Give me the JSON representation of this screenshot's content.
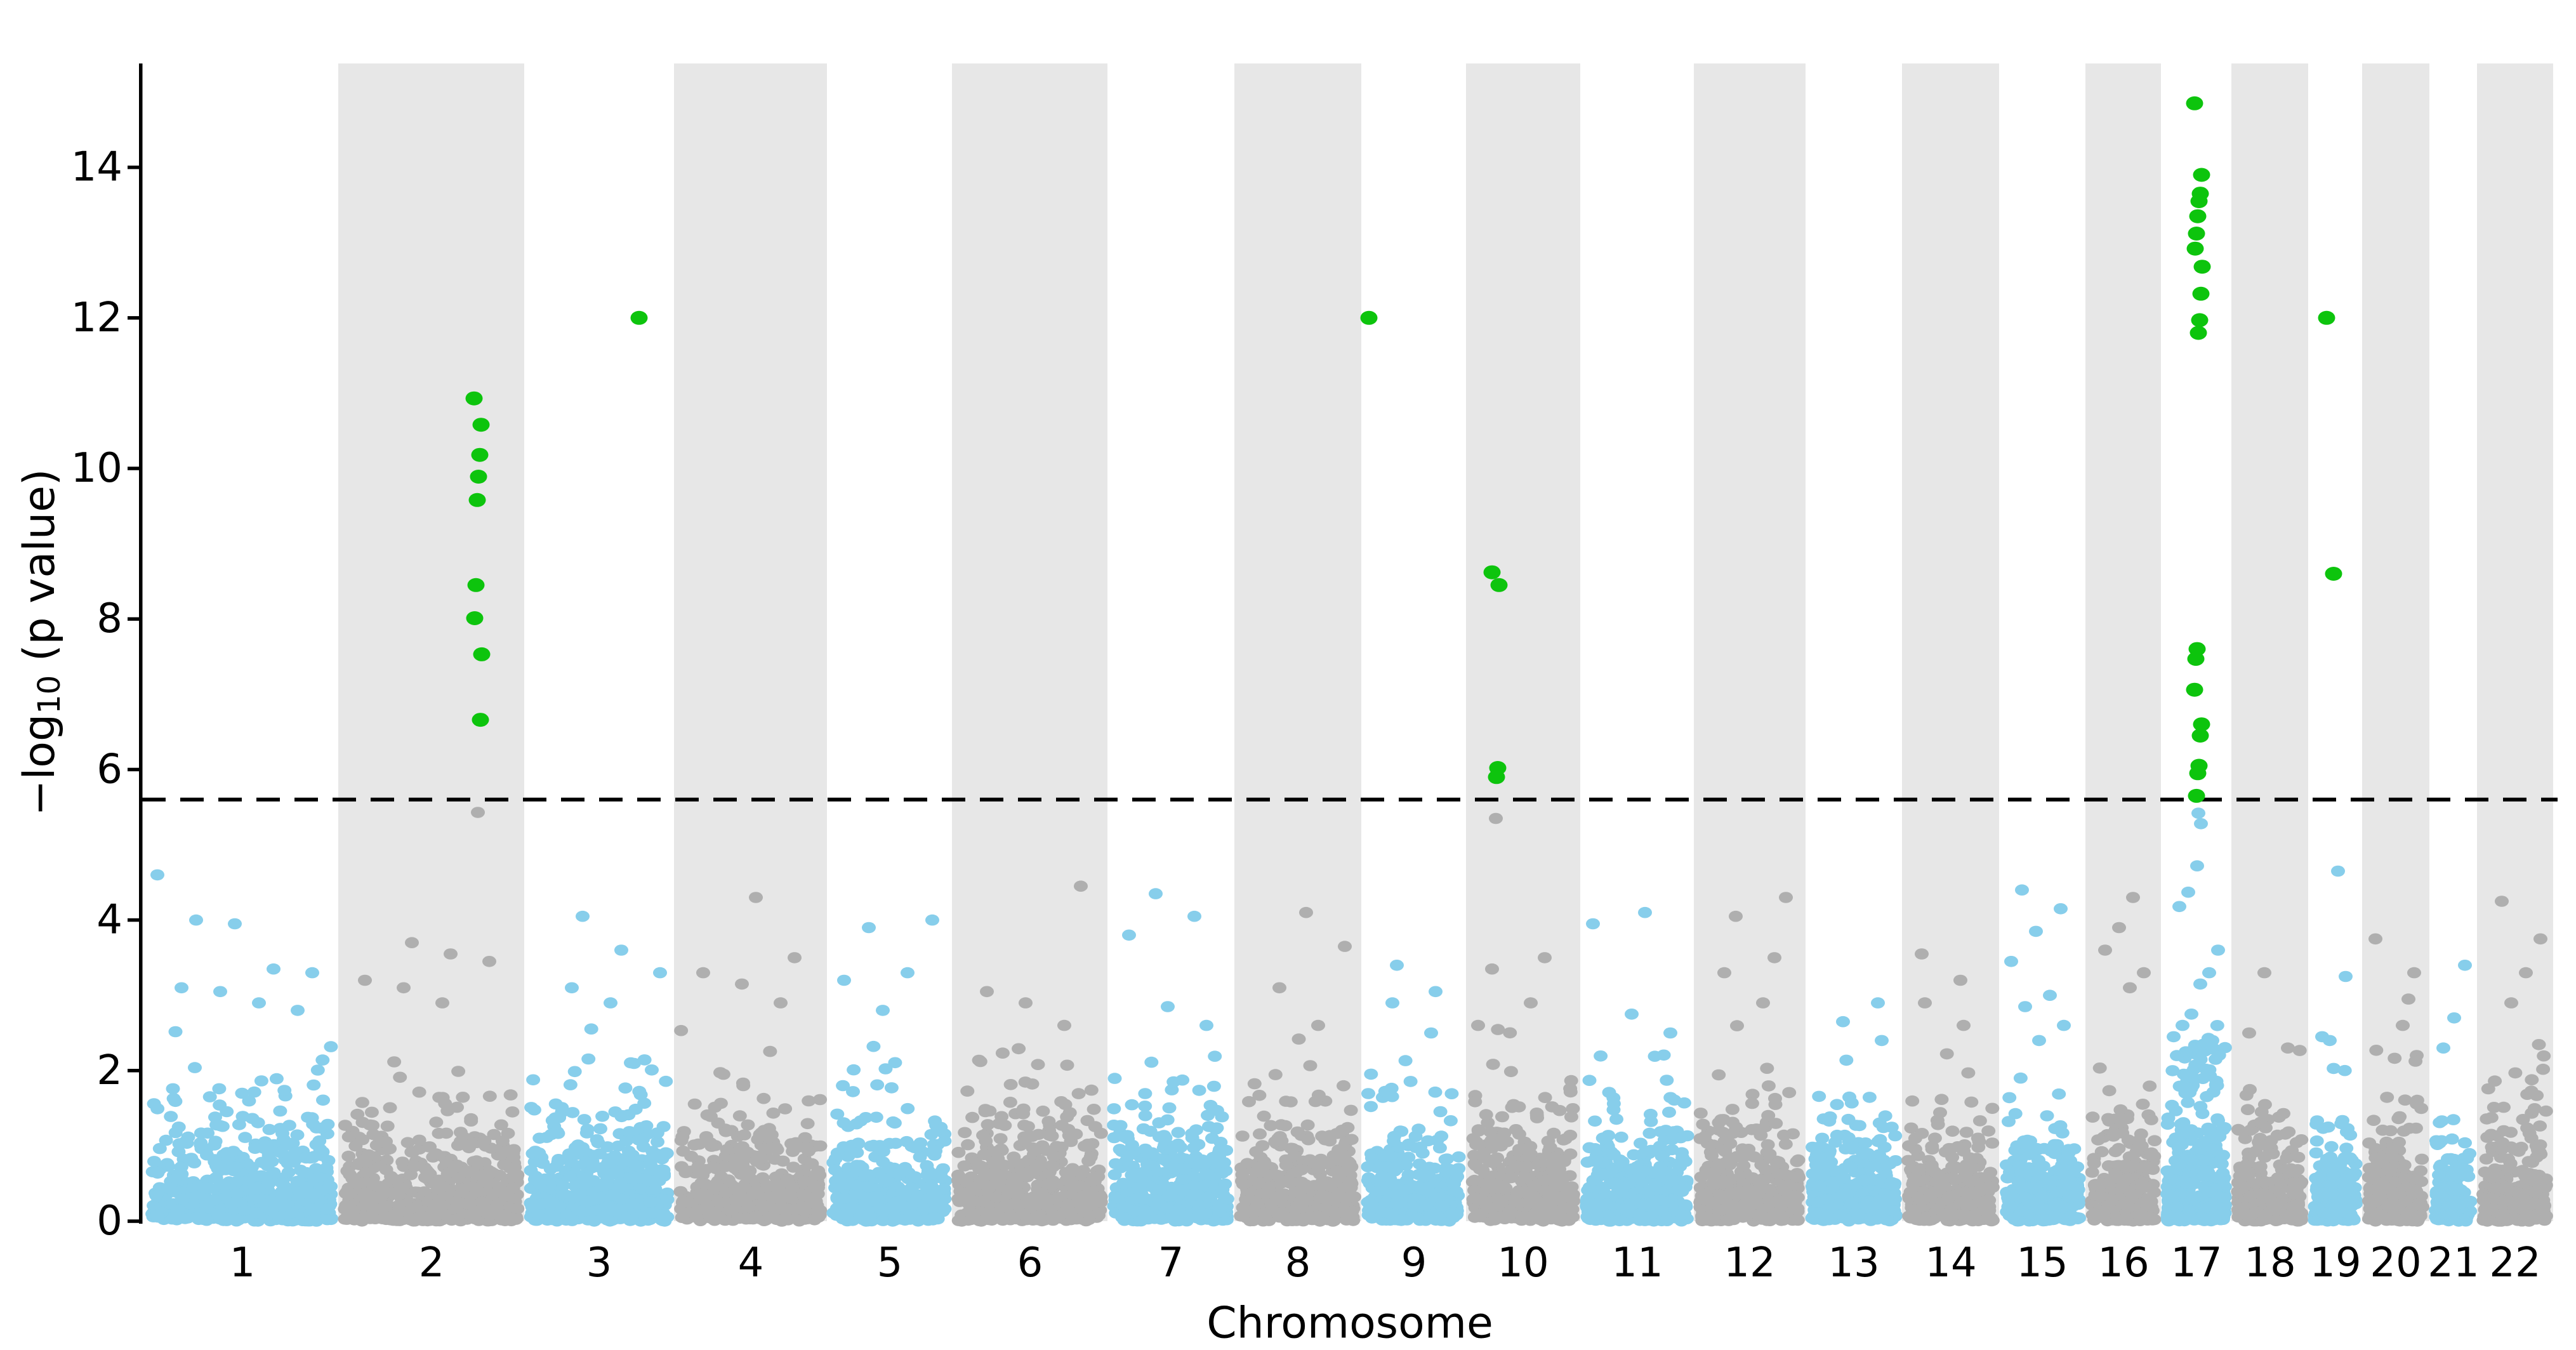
{
  "chart_data": {
    "type": "scatter",
    "subtype": "manhattan-gwas",
    "title": "",
    "xlabel": "Chromosome",
    "ylabel": {
      "pre": "−log",
      "sub": "10",
      "post": " (p value)"
    },
    "ylim": [
      0,
      15.4
    ],
    "yticks": [
      0,
      2,
      4,
      6,
      8,
      10,
      12,
      14
    ],
    "xtick_labels": [
      "1",
      "2",
      "3",
      "4",
      "5",
      "6",
      "7",
      "8",
      "9",
      "10",
      "11",
      "12",
      "13",
      "14",
      "15",
      "16",
      "17",
      "18",
      "19",
      "20",
      "21",
      "22"
    ],
    "grid": false,
    "legend": "none",
    "threshold_line": {
      "value": 5.6,
      "style": "dashed",
      "color": "#000000"
    },
    "colors": {
      "odd_chromosome_points": "#87CEEB",
      "even_chromosome_points": "#AFAFAF",
      "even_chromosome_band": "#E7E7E7",
      "significant_points": "#0DC40D",
      "axis": "#000000"
    },
    "chromosomes": [
      {
        "label": "1",
        "x0": 230,
        "x1": 533,
        "shaded": false,
        "n": 636,
        "notable": [
          4.6,
          4.0,
          3.95,
          3.35,
          3.3,
          3.1,
          3.05,
          2.9,
          2.8
        ]
      },
      {
        "label": "2",
        "x0": 533,
        "x1": 826,
        "shaded": true,
        "n": 615,
        "notable": [
          {
            "v": 5.43,
            "x": 753
          },
          3.7,
          3.55,
          3.45,
          3.2,
          3.1,
          2.9
        ]
      },
      {
        "label": "3",
        "x0": 826,
        "x1": 1062,
        "shaded": false,
        "n": 496,
        "notable": [
          4.05,
          3.6,
          3.3,
          3.1,
          2.9
        ]
      },
      {
        "label": "4",
        "x0": 1062,
        "x1": 1303,
        "shaded": true,
        "n": 506,
        "notable": [
          4.3,
          3.5,
          3.3,
          3.15,
          2.9
        ]
      },
      {
        "label": "5",
        "x0": 1303,
        "x1": 1500,
        "shaded": false,
        "n": 414,
        "notable": [
          4.0,
          3.9,
          3.3,
          3.2,
          2.8
        ]
      },
      {
        "label": "6",
        "x0": 1500,
        "x1": 1745,
        "shaded": true,
        "n": 515,
        "notable": [
          4.45,
          3.05,
          2.9,
          2.6
        ]
      },
      {
        "label": "7",
        "x0": 1745,
        "x1": 1945,
        "shaded": false,
        "n": 420,
        "notable": [
          4.35,
          4.05,
          3.8,
          2.85,
          2.6
        ]
      },
      {
        "label": "8",
        "x0": 1945,
        "x1": 2145,
        "shaded": true,
        "n": 420,
        "notable": [
          4.1,
          3.65,
          3.1,
          2.6
        ]
      },
      {
        "label": "9",
        "x0": 2145,
        "x1": 2310,
        "shaded": false,
        "n": 347,
        "notable": [
          3.4,
          3.05,
          2.9,
          2.5
        ]
      },
      {
        "label": "10",
        "x0": 2310,
        "x1": 2490,
        "shaded": true,
        "n": 378,
        "notable": [
          {
            "v": 5.35,
            "x": 2357
          },
          3.5,
          3.35,
          2.9,
          2.6
        ]
      },
      {
        "label": "11",
        "x0": 2490,
        "x1": 2669,
        "shaded": false,
        "n": 376,
        "notable": [
          4.1,
          3.95,
          2.75,
          2.5
        ]
      },
      {
        "label": "12",
        "x0": 2669,
        "x1": 2845,
        "shaded": true,
        "n": 370,
        "notable": [
          4.3,
          4.05,
          3.5,
          3.3,
          2.9
        ]
      },
      {
        "label": "13",
        "x0": 2845,
        "x1": 2997,
        "shaded": false,
        "n": 319,
        "notable": [
          2.9,
          2.65,
          2.4
        ]
      },
      {
        "label": "14",
        "x0": 2997,
        "x1": 3150,
        "shaded": true,
        "n": 321,
        "notable": [
          3.55,
          3.2,
          2.9,
          2.6
        ]
      },
      {
        "label": "15",
        "x0": 3150,
        "x1": 3286,
        "shaded": false,
        "n": 286,
        "notable": [
          4.4,
          4.15,
          3.85,
          3.45,
          3.0,
          2.85,
          2.6,
          2.4
        ]
      },
      {
        "label": "16",
        "x0": 3286,
        "x1": 3405,
        "shaded": true,
        "n": 250,
        "notable": [
          4.3,
          3.9,
          3.6,
          3.3,
          3.1
        ]
      },
      {
        "label": "17",
        "x0": 3405,
        "x1": 3516,
        "shaded": false,
        "n": 350,
        "notable": [
          {
            "v": 5.42,
            "x": 3464
          },
          {
            "v": 5.28,
            "x": 3468
          },
          4.72,
          4.37,
          4.18,
          3.6,
          3.3,
          3.15,
          2.75,
          2.6,
          2.45,
          2.4,
          2.35,
          2.3,
          2.25,
          2.2,
          2.15
        ],
        "tail_boost": true
      },
      {
        "label": "18",
        "x0": 3516,
        "x1": 3637,
        "shaded": true,
        "n": 254,
        "notable": [
          3.3,
          2.5,
          2.3
        ]
      },
      {
        "label": "19",
        "x0": 3637,
        "x1": 3722,
        "shaded": false,
        "n": 179,
        "notable": [
          4.65,
          3.25,
          2.45,
          2.4
        ]
      },
      {
        "label": "20",
        "x0": 3722,
        "x1": 3828,
        "shaded": true,
        "n": 223,
        "notable": [
          3.75,
          3.3,
          2.95,
          2.6
        ]
      },
      {
        "label": "21",
        "x0": 3828,
        "x1": 3903,
        "shaded": false,
        "n": 158,
        "notable": [
          3.4,
          2.7,
          2.3
        ]
      },
      {
        "label": "22",
        "x0": 3903,
        "x1": 4023,
        "shaded": true,
        "n": 252,
        "notable": [
          4.25,
          3.75,
          3.3,
          2.9
        ]
      }
    ],
    "significant_hits": [
      {
        "chromosome": "2",
        "x": 753,
        "values": [
          10.93,
          10.58,
          10.18,
          9.89,
          9.58,
          8.45,
          8.01,
          7.53,
          6.66
        ]
      },
      {
        "chromosome": "3",
        "x": 1013,
        "values": [
          12.0
        ]
      },
      {
        "chromosome": "9",
        "x": 2163,
        "values": [
          12.0
        ]
      },
      {
        "chromosome": "10",
        "x": 2357,
        "values": [
          8.62,
          8.45,
          6.02,
          5.9
        ]
      },
      {
        "chromosome": "17",
        "x": 3464,
        "values": [
          14.85,
          13.9,
          13.65,
          13.55,
          13.35,
          13.12,
          12.92,
          12.68,
          12.32,
          11.97,
          11.8,
          7.6,
          7.47,
          7.06,
          6.6,
          6.45,
          6.05,
          5.95,
          5.65
        ]
      },
      {
        "chromosome": "19",
        "x": 3672,
        "values": [
          12.0,
          8.6
        ]
      }
    ],
    "background_distribution": {
      "model": "exponential_-log10_uniform",
      "cap": 2.6
    }
  }
}
